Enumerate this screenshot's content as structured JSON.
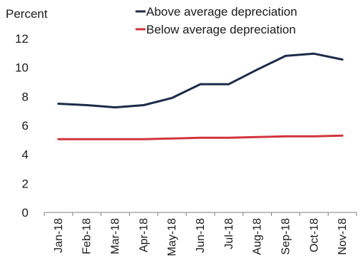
{
  "chart_data": {
    "type": "line",
    "ylabel": "Percent",
    "ylim": [
      0,
      12
    ],
    "yticks": [
      0,
      2,
      4,
      6,
      8,
      10,
      12
    ],
    "categories": [
      "Jan-18",
      "Feb-18",
      "Mar-18",
      "Apr-18",
      "May-18",
      "Jun-18",
      "Jul-18",
      "Aug-18",
      "Sep-18",
      "Oct-18",
      "Nov-18"
    ],
    "legend_position": "top",
    "series": [
      {
        "name": "Above average depreciation",
        "color": "#1c2b4a",
        "values": [
          7.5,
          7.4,
          7.25,
          7.4,
          7.9,
          8.85,
          8.85,
          9.85,
          10.8,
          10.95,
          10.55
        ]
      },
      {
        "name": "Below average depreciation",
        "color": "#d2343c",
        "values": [
          5.05,
          5.05,
          5.05,
          5.05,
          5.1,
          5.15,
          5.15,
          5.2,
          5.25,
          5.25,
          5.3
        ]
      }
    ]
  }
}
